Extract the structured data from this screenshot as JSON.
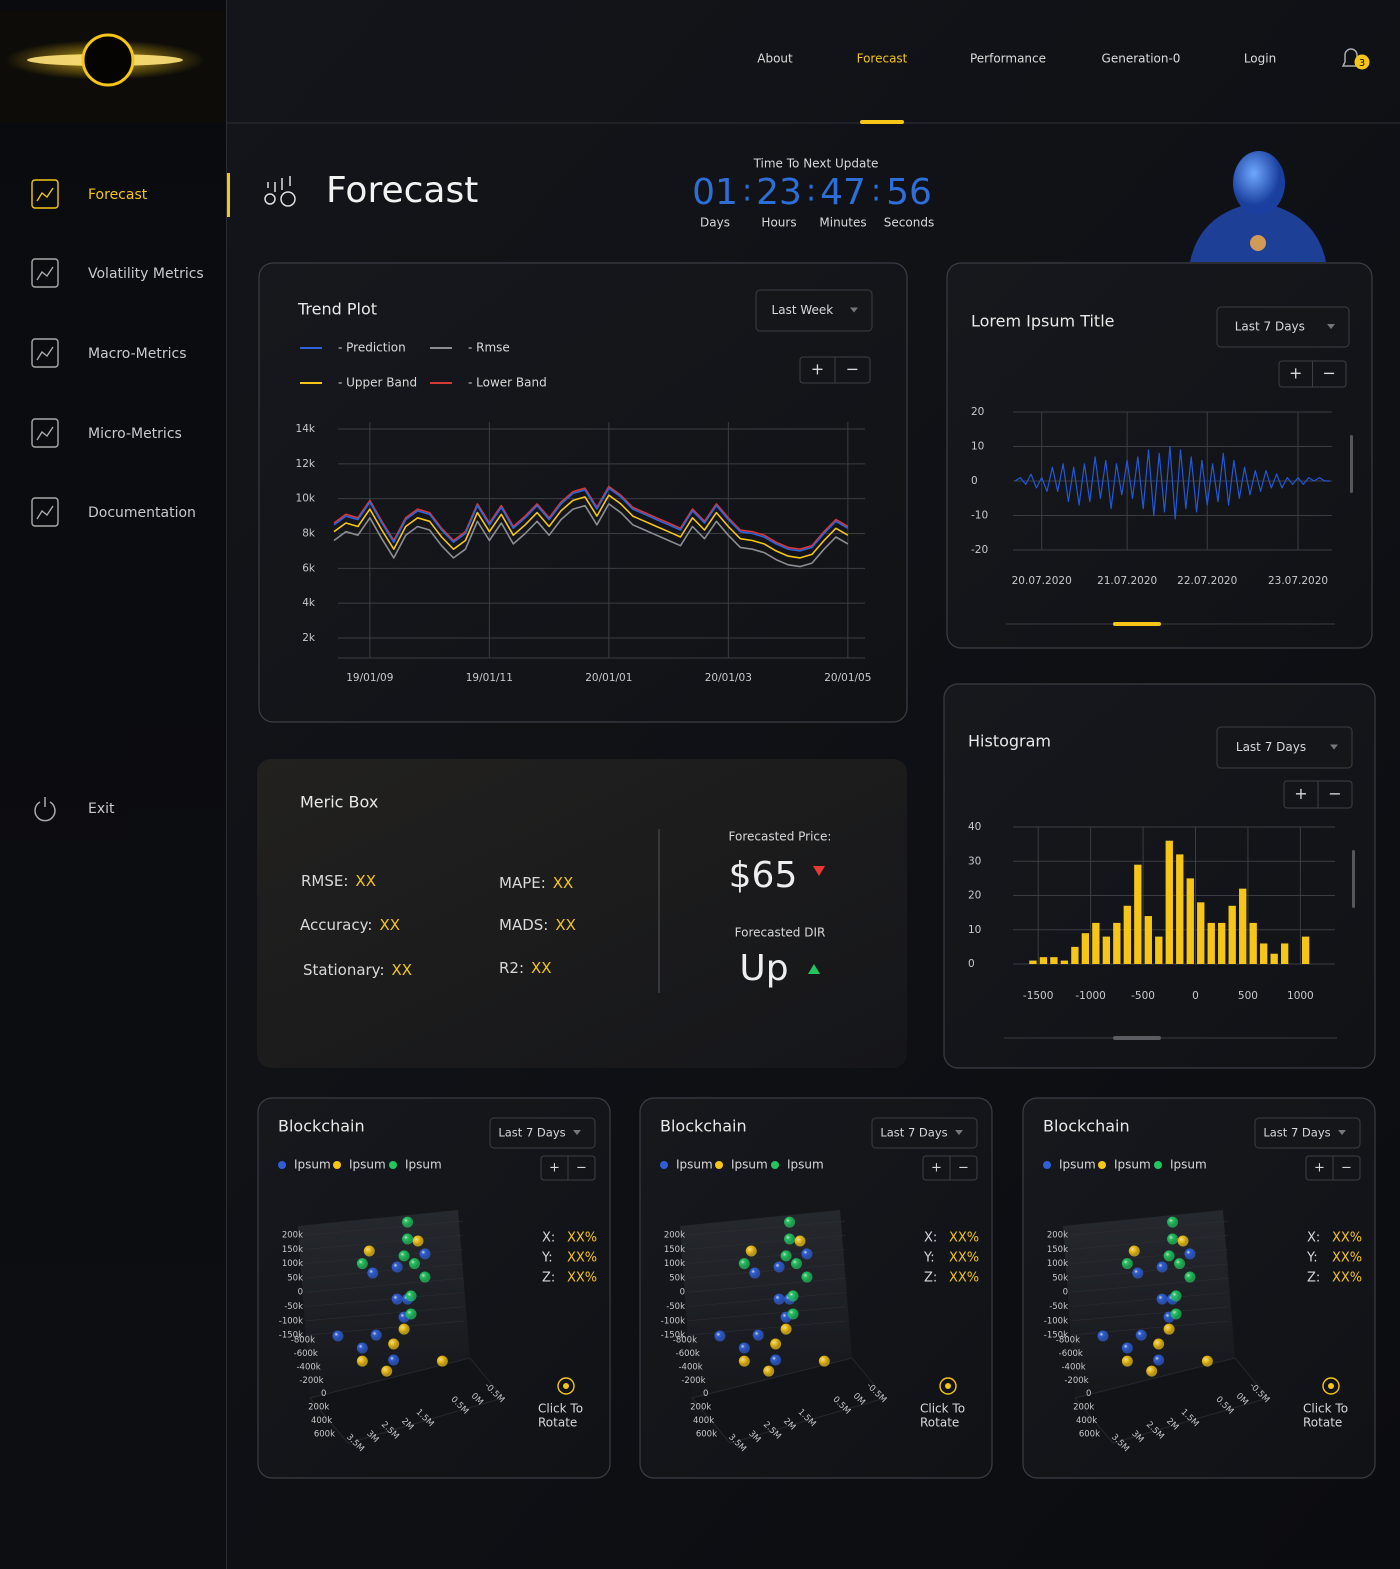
{
  "nav": {
    "items": [
      "About",
      "Forecast",
      "Performance",
      "Generation-0",
      "Login"
    ],
    "active": "Forecast",
    "notifications": 3
  },
  "sidebar": {
    "items": [
      "Forecast",
      "Volatility Metrics",
      "Macro-Metrics",
      "Micro-Metrics",
      "Documentation"
    ],
    "active": "Forecast",
    "exit": "Exit"
  },
  "header": {
    "title": "Forecast",
    "update_label": "Time To Next Update",
    "separator": ":",
    "countdown": [
      {
        "value": "01",
        "unit": "Days"
      },
      {
        "value": "23",
        "unit": "Hours"
      },
      {
        "value": "47",
        "unit": "Minutes"
      },
      {
        "value": "56",
        "unit": "Seconds"
      }
    ]
  },
  "zoom": [
    "+",
    "−"
  ],
  "metric_box": {
    "title": "Meric Box",
    "metrics": [
      {
        "label": "RMSE:",
        "value": "XX"
      },
      {
        "label": "Accuracy:",
        "value": "XX"
      },
      {
        "label": "Stationary:",
        "value": "XX"
      },
      {
        "label": "MAPE:",
        "value": "XX"
      },
      {
        "label": "MADS:",
        "value": "XX"
      },
      {
        "label": "R2:",
        "value": "XX"
      }
    ],
    "price_label": "Forecasted Price:",
    "price": "$65",
    "dir_label": "Forecasted DIR",
    "dir": "Up"
  },
  "chart_data": [
    {
      "type": "line",
      "title": "Trend Plot",
      "range": "Last Week",
      "categories": [
        null,
        null,
        null,
        "19/01/09",
        null,
        null,
        null,
        null,
        null,
        null,
        null,
        null,
        null,
        "19/01/11",
        null,
        null,
        null,
        null,
        null,
        null,
        null,
        null,
        null,
        "20/01/01",
        null,
        null,
        null,
        null,
        null,
        null,
        null,
        null,
        null,
        "20/01/03",
        null,
        null,
        null,
        null,
        null,
        null,
        null,
        null,
        null,
        "20/01/05"
      ],
      "series": [
        {
          "name": "- Prediction",
          "color": "#2f63d8",
          "values": [
            8500,
            9000,
            8800,
            9800,
            8600,
            7500,
            8800,
            9300,
            9100,
            8200,
            7500,
            8000,
            9600,
            8500,
            9500,
            8300,
            8900,
            9600,
            8800,
            9700,
            10300,
            10500,
            9400,
            10600,
            10100,
            9400,
            9100,
            8800,
            8500,
            8200,
            9300,
            8600,
            9600,
            8800,
            8100,
            8000,
            7800,
            7400,
            7100,
            7000,
            7200,
            8000,
            8700,
            8300
          ]
        },
        {
          "name": "- Rmse",
          "color": "#8a8d93",
          "values": [
            7600,
            8100,
            7900,
            8900,
            7700,
            6600,
            7900,
            8400,
            8200,
            7300,
            6600,
            7100,
            8700,
            7600,
            8600,
            7400,
            8000,
            8700,
            7900,
            8800,
            9400,
            9600,
            8500,
            9700,
            9200,
            8500,
            8200,
            7900,
            7600,
            7300,
            8400,
            7700,
            8700,
            7900,
            7200,
            7100,
            6900,
            6500,
            6200,
            6100,
            6300,
            7100,
            7800,
            7400
          ]
        },
        {
          "name": "- Upper Band",
          "color": "#f5c518",
          "values": [
            8100,
            8600,
            8400,
            9400,
            8200,
            7100,
            8400,
            8900,
            8700,
            7800,
            7100,
            7600,
            9200,
            8100,
            9100,
            7900,
            8500,
            9200,
            8400,
            9300,
            9900,
            10100,
            9000,
            10200,
            9700,
            9000,
            8700,
            8400,
            8100,
            7800,
            8900,
            8200,
            9200,
            8400,
            7700,
            7600,
            7400,
            7000,
            6700,
            6600,
            6800,
            7600,
            8300,
            7900
          ]
        },
        {
          "name": "- Lower Band",
          "color": "#d63838",
          "values": [
            8600,
            9100,
            8900,
            9900,
            8700,
            7600,
            8900,
            9400,
            9200,
            8300,
            7600,
            8100,
            9700,
            8600,
            9600,
            8400,
            9000,
            9700,
            8900,
            9800,
            10400,
            10600,
            9500,
            10700,
            10200,
            9500,
            9200,
            8900,
            8600,
            8300,
            9400,
            8700,
            9700,
            8900,
            8200,
            8100,
            7900,
            7500,
            7200,
            7100,
            7300,
            8100,
            8800,
            8400
          ]
        }
      ],
      "ylim": [
        850,
        14000
      ],
      "yticks": [
        {
          "value": 2000,
          "label": "2k"
        },
        {
          "value": 4000,
          "label": "4k"
        },
        {
          "value": 6000,
          "label": "6k"
        },
        {
          "value": 8000,
          "label": "8k"
        },
        {
          "value": 10000,
          "label": "10k"
        },
        {
          "value": 12000,
          "label": "12k"
        },
        {
          "value": 14000,
          "label": "14k"
        }
      ],
      "grid": true
    },
    {
      "type": "line",
      "title": "Lorem Ipsum Title",
      "range": "Last 7 Days",
      "categories": [
        null,
        null,
        null,
        null,
        null,
        "20.07.2020",
        null,
        null,
        null,
        null,
        null,
        null,
        null,
        null,
        null,
        null,
        null,
        null,
        null,
        null,
        null,
        "21.07.2020",
        null,
        null,
        null,
        null,
        null,
        null,
        null,
        null,
        null,
        null,
        null,
        null,
        null,
        null,
        "22.07.2020",
        null,
        null,
        null,
        null,
        null,
        null,
        null,
        null,
        null,
        null,
        null,
        null,
        null,
        null,
        null,
        null,
        "23.07.2020",
        null,
        null,
        null,
        null,
        null,
        null
      ],
      "series": [
        {
          "color": "#2358d6",
          "values": [
            0,
            1,
            -1,
            2,
            -2,
            1,
            -3,
            4,
            -3,
            5,
            -6,
            4,
            -7,
            5,
            -6,
            7,
            -5,
            6,
            -8,
            5,
            -4,
            6,
            -5,
            7,
            -8,
            9,
            -10,
            8,
            -9,
            10,
            -11,
            9,
            -8,
            7,
            -9,
            6,
            -7,
            5,
            -6,
            8,
            -7,
            6,
            -5,
            4,
            -4,
            3,
            -3,
            3,
            -2,
            2,
            -2,
            1,
            -1,
            1,
            -1,
            1,
            0,
            1,
            0,
            0
          ]
        }
      ],
      "ylim": [
        -20,
        20
      ],
      "yticks": [
        -20,
        -10,
        0,
        10,
        20
      ],
      "grid": true
    },
    {
      "type": "histogram",
      "title": "Histogram",
      "range": "Last 7 Days",
      "bins": [
        -1600,
        -1500,
        -1400,
        -1300,
        -1200,
        -1100,
        -1000,
        -900,
        -800,
        -700,
        -600,
        -500,
        -400,
        -300,
        -200,
        -100,
        0,
        100,
        200,
        300,
        400,
        500,
        600,
        700,
        800,
        900,
        1000,
        1100
      ],
      "values": [
        1,
        2,
        2,
        1,
        5,
        9,
        12,
        8,
        12,
        17,
        29,
        14,
        8,
        36,
        32,
        25,
        18,
        12,
        12,
        17,
        22,
        12,
        6,
        3,
        6,
        0,
        8
      ],
      "color": "#f5c518",
      "xlim": [
        -1740,
        1330
      ],
      "xticks": [
        -1500,
        -1000,
        -500,
        0,
        500,
        1000
      ],
      "ylim": [
        0,
        40
      ],
      "yticks": [
        0,
        10,
        20,
        30,
        40
      ],
      "grid": true
    },
    {
      "type": "scatter3d",
      "title": "Blockchain",
      "range": "Last 7 Days",
      "series": [
        {
          "name": "Ipsum",
          "color": "#2f5fd6",
          "x": [
            1.5,
            2.3,
            3.0,
            2.3,
            2.0,
            4.0,
            2.9,
            3.3,
            2.4,
            2.1
          ],
          "values": [
            134,
            88,
            67,
            -24,
            -24,
            -153,
            -150,
            -195,
            -237,
            -87
          ]
        },
        {
          "name": "Ipsum",
          "color": "#f5c518",
          "x": [
            1.7,
            3.1,
            2.1,
            2.4,
            3.3,
            2.6,
            1.0
          ],
          "values": [
            179,
            144,
            -129,
            -181,
            -241,
            -276,
            -241
          ]
        },
        {
          "name": "Ipsum",
          "color": "#22c55e",
          "x": [
            2.0,
            2.0,
            2.1,
            1.8,
            1.5,
            1.9,
            1.9,
            3.3
          ],
          "values": [
            245,
            186,
            127,
            100,
            53,
            -13,
            -76,
            100
          ]
        }
      ],
      "xlim": [
        4.2,
        -0.8
      ],
      "xticks": [
        {
          "value": 3.5,
          "label": "3.5M"
        },
        {
          "value": 3,
          "label": "3M"
        },
        {
          "value": 2.5,
          "label": "2.5M"
        },
        {
          "value": 2,
          "label": "2M"
        },
        {
          "value": 1.5,
          "label": "1.5M"
        },
        {
          "value": 0.5,
          "label": "0.5M"
        },
        {
          "value": 0,
          "label": "0M"
        },
        {
          "value": -0.5,
          "label": "-0.5M"
        }
      ],
      "ylim": [
        -300,
        270
      ],
      "yticks": [
        {
          "value": 200,
          "label": "200k"
        },
        {
          "value": 150,
          "label": "150k"
        },
        {
          "value": 100,
          "label": "100k"
        },
        {
          "value": 50,
          "label": "50k"
        },
        0,
        {
          "value": -50,
          "label": "-50k"
        },
        {
          "value": -100,
          "label": "-100k"
        },
        {
          "value": -150,
          "label": "-150k"
        }
      ],
      "zlim": [
        -800,
        600
      ],
      "zticks": [
        {
          "value": -800,
          "label": "-800k"
        },
        {
          "value": -600,
          "label": "-600k"
        },
        {
          "value": -400,
          "label": "-400k"
        },
        {
          "value": -200,
          "label": "-200k"
        },
        0,
        {
          "value": 200,
          "label": "200k"
        },
        {
          "value": 400,
          "label": "400k"
        },
        {
          "value": 600,
          "label": "600k"
        }
      ],
      "readout": [
        {
          "label": "X:",
          "value": "XX%"
        },
        {
          "label": "Y:",
          "value": "XX%"
        },
        {
          "label": "Z:",
          "value": "XX%"
        }
      ],
      "hint": [
        "Click To",
        "Rotate"
      ]
    }
  ]
}
